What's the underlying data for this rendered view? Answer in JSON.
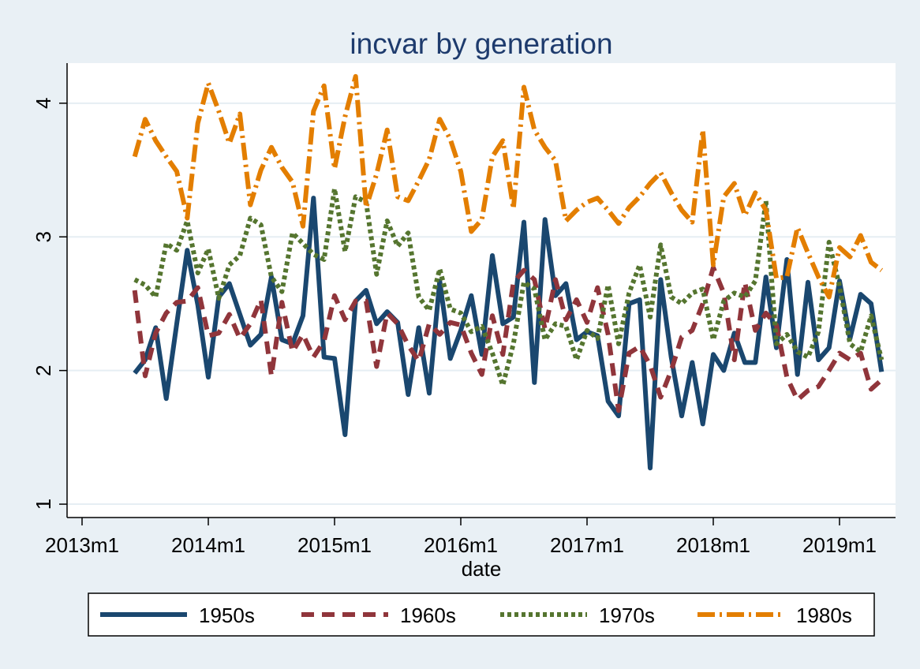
{
  "chart_data": {
    "type": "line",
    "title": "incvar by generation",
    "xlabel": "date",
    "ylabel": "",
    "ylim": [
      0.9,
      4.3
    ],
    "yticks": [
      1,
      2,
      3,
      4
    ],
    "xticks": [
      "2013m1",
      "2014m1",
      "2015m1",
      "2016m1",
      "2017m1",
      "2018m1",
      "2019m1"
    ],
    "x": [
      "2013m6",
      "2013m7",
      "2013m8",
      "2013m9",
      "2013m10",
      "2013m11",
      "2013m12",
      "2014m1",
      "2014m2",
      "2014m3",
      "2014m4",
      "2014m5",
      "2014m6",
      "2014m7",
      "2014m8",
      "2014m9",
      "2014m10",
      "2014m11",
      "2014m12",
      "2015m1",
      "2015m2",
      "2015m3",
      "2015m4",
      "2015m5",
      "2015m6",
      "2015m7",
      "2015m8",
      "2015m9",
      "2015m10",
      "2015m11",
      "2015m12",
      "2016m1",
      "2016m2",
      "2016m3",
      "2016m4",
      "2016m5",
      "2016m6",
      "2016m7",
      "2016m8",
      "2016m9",
      "2016m10",
      "2016m11",
      "2016m12",
      "2017m1",
      "2017m2",
      "2017m3",
      "2017m4",
      "2017m5",
      "2017m6",
      "2017m7",
      "2017m8",
      "2017m9",
      "2017m10",
      "2017m11",
      "2017m12",
      "2018m1",
      "2018m2",
      "2018m3",
      "2018m4",
      "2018m5",
      "2018m6",
      "2018m7",
      "2018m8",
      "2018m9",
      "2018m10",
      "2018m11",
      "2018m12",
      "2019m1",
      "2019m2",
      "2019m3",
      "2019m4",
      "2019m5"
    ],
    "grid": true,
    "legend_position": "bottom",
    "series": [
      {
        "name": "1950s",
        "color": "#1a476f",
        "style": "solid",
        "values": [
          1.98,
          2.08,
          2.32,
          1.79,
          2.35,
          2.9,
          2.49,
          1.95,
          2.55,
          2.65,
          2.42,
          2.19,
          2.27,
          2.7,
          2.23,
          2.2,
          2.41,
          3.29,
          2.1,
          2.09,
          1.52,
          2.52,
          2.6,
          2.35,
          2.44,
          2.36,
          1.82,
          2.32,
          1.83,
          2.67,
          2.09,
          2.3,
          2.56,
          2.12,
          2.86,
          2.35,
          2.4,
          3.11,
          1.91,
          3.13,
          2.56,
          2.65,
          2.23,
          2.29,
          2.26,
          1.77,
          1.66,
          2.5,
          2.53,
          1.27,
          2.68,
          2.1,
          1.66,
          2.06,
          1.6,
          2.12,
          2.0,
          2.28,
          2.06,
          2.06,
          2.7,
          2.17,
          2.83,
          1.97,
          2.66,
          2.08,
          2.17,
          2.67,
          2.24,
          2.57,
          2.5,
          1.99
        ]
      },
      {
        "name": "1960s",
        "color": "#90353b",
        "style": "dashed",
        "values": [
          2.6,
          1.96,
          2.28,
          2.43,
          2.51,
          2.52,
          2.62,
          2.26,
          2.28,
          2.42,
          2.24,
          2.35,
          2.53,
          1.96,
          2.51,
          2.14,
          2.27,
          2.1,
          2.22,
          2.56,
          2.38,
          2.52,
          2.52,
          2.03,
          2.43,
          2.35,
          2.19,
          2.07,
          2.35,
          2.27,
          2.36,
          2.34,
          2.13,
          1.97,
          2.41,
          2.12,
          2.66,
          2.75,
          2.68,
          2.31,
          2.68,
          2.38,
          2.53,
          2.36,
          2.62,
          2.27,
          1.7,
          2.13,
          2.18,
          2.04,
          1.8,
          2.0,
          2.25,
          2.3,
          2.5,
          2.77,
          2.58,
          2.08,
          2.66,
          2.3,
          2.43,
          2.34,
          1.95,
          1.78,
          1.85,
          1.88,
          2.0,
          2.13,
          2.08,
          2.13,
          1.86,
          1.93
        ]
      },
      {
        "name": "1970s",
        "color": "#55752f",
        "style": "dotted",
        "values": [
          2.68,
          2.64,
          2.55,
          2.95,
          2.9,
          3.12,
          2.73,
          2.91,
          2.54,
          2.79,
          2.86,
          3.14,
          3.09,
          2.7,
          2.59,
          3.03,
          2.95,
          2.87,
          2.83,
          3.36,
          2.89,
          3.3,
          3.26,
          2.72,
          3.12,
          2.93,
          3.03,
          2.55,
          2.45,
          2.76,
          2.46,
          2.43,
          2.29,
          2.33,
          2.13,
          1.89,
          2.2,
          2.66,
          2.61,
          2.23,
          2.35,
          2.33,
          2.08,
          2.3,
          2.24,
          2.64,
          2.2,
          2.58,
          2.79,
          2.4,
          2.94,
          2.55,
          2.5,
          2.58,
          2.61,
          2.23,
          2.52,
          2.58,
          2.55,
          2.67,
          3.27,
          2.2,
          2.27,
          2.14,
          2.1,
          2.29,
          2.96,
          2.63,
          2.2,
          2.14,
          2.41,
          2.08
        ]
      },
      {
        "name": "1980s",
        "color": "#e37e00",
        "style": "dashdot",
        "values": [
          3.6,
          3.88,
          3.72,
          3.6,
          3.49,
          3.14,
          3.85,
          4.15,
          3.94,
          3.7,
          3.92,
          3.24,
          3.5,
          3.67,
          3.52,
          3.41,
          3.08,
          3.94,
          4.13,
          3.51,
          3.9,
          4.2,
          3.22,
          3.47,
          3.8,
          3.3,
          3.27,
          3.42,
          3.58,
          3.88,
          3.73,
          3.49,
          3.04,
          3.13,
          3.6,
          3.72,
          3.21,
          4.12,
          3.8,
          3.67,
          3.57,
          3.12,
          3.2,
          3.26,
          3.29,
          3.2,
          3.1,
          3.22,
          3.3,
          3.4,
          3.48,
          3.33,
          3.2,
          3.11,
          3.8,
          2.79,
          3.3,
          3.4,
          3.16,
          3.33,
          3.2,
          2.69,
          2.7,
          3.07,
          2.88,
          2.7,
          2.55,
          2.92,
          2.85,
          3.01,
          2.81,
          2.75
        ]
      }
    ]
  }
}
